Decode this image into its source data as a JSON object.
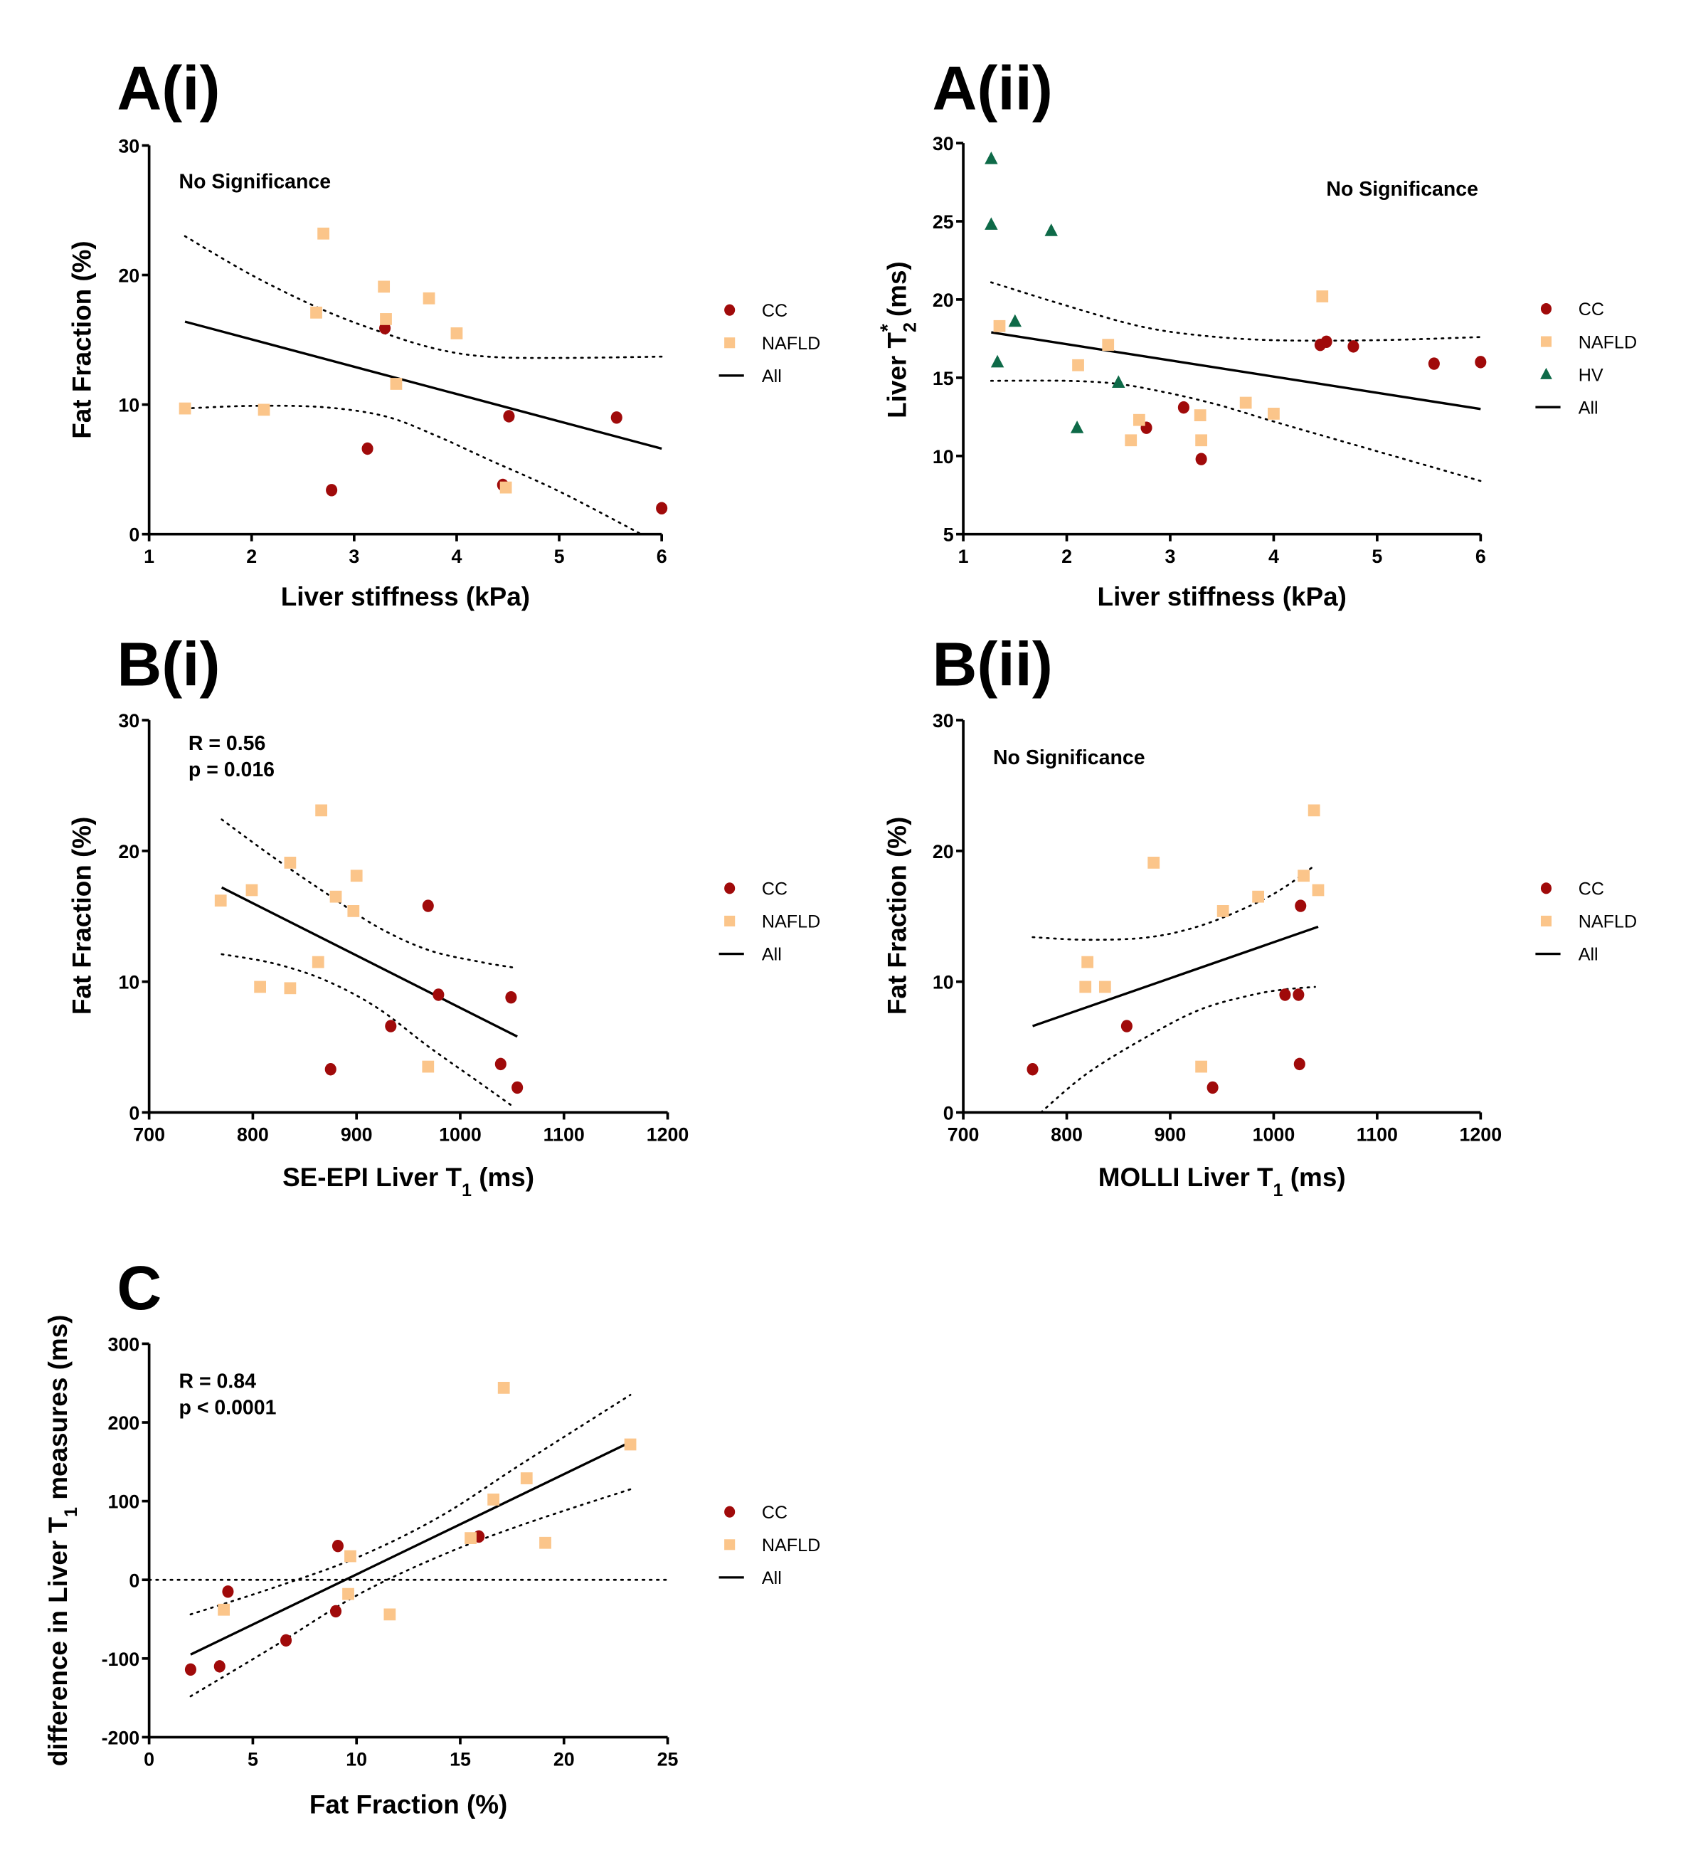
{
  "colors": {
    "CC": "#A00A0A",
    "NAFLD": "#FBC58A",
    "HV": "#0E6A48",
    "line": "#000000"
  },
  "chart_data": [
    {
      "id": "Ai",
      "panel_label": "A(i)",
      "type": "scatter",
      "xlabel": "Liver stiffness (kPa)",
      "ylabel": "Fat Fraction (%)",
      "ylabel_parts": {
        "main": "Fat Fraction (%)",
        "sub": "",
        "sup": "",
        "tail": ""
      },
      "xlim": [
        1,
        6
      ],
      "ylim": [
        0,
        30
      ],
      "xticks": [
        1,
        2,
        3,
        4,
        5,
        6
      ],
      "yticks": [
        0,
        10,
        20,
        30
      ],
      "annotation": [
        "No Significance"
      ],
      "annotation_pos": "top-left",
      "legend": [
        "CC",
        "NAFLD",
        "All"
      ],
      "legend_placement": "right",
      "series": [
        {
          "name": "CC",
          "marker": "circle",
          "points": [
            [
              3.3,
              15.9
            ],
            [
              2.78,
              3.4
            ],
            [
              3.13,
              6.6
            ],
            [
              4.51,
              9.1
            ],
            [
              5.56,
              9.0
            ],
            [
              4.45,
              3.8
            ],
            [
              6.0,
              2.0
            ]
          ]
        },
        {
          "name": "NAFLD",
          "marker": "square",
          "points": [
            [
              1.35,
              9.7
            ],
            [
              2.12,
              9.6
            ],
            [
              2.7,
              23.2
            ],
            [
              2.63,
              17.1
            ],
            [
              3.29,
              19.1
            ],
            [
              3.31,
              16.6
            ],
            [
              3.73,
              18.2
            ],
            [
              4.0,
              15.5
            ],
            [
              3.41,
              11.6
            ],
            [
              4.48,
              3.6
            ]
          ]
        }
      ],
      "fit": {
        "name": "All",
        "from": [
          1.35,
          16.4
        ],
        "to": [
          6.0,
          6.6
        ]
      },
      "ci_upper": [
        [
          1.35,
          23.0
        ],
        [
          2.0,
          20.0
        ],
        [
          2.7,
          17.3
        ],
        [
          3.3,
          15.5
        ],
        [
          3.8,
          14.3
        ],
        [
          4.3,
          13.7
        ],
        [
          5.0,
          13.6
        ],
        [
          6.0,
          13.7
        ]
      ],
      "ci_lower": [
        [
          1.35,
          9.7
        ],
        [
          2.0,
          9.9
        ],
        [
          2.7,
          9.8
        ],
        [
          3.3,
          9.1
        ],
        [
          3.8,
          7.6
        ],
        [
          4.3,
          5.8
        ],
        [
          5.0,
          3.3
        ],
        [
          5.8,
          0.0
        ]
      ]
    },
    {
      "id": "Aii",
      "panel_label": "A(ii)",
      "type": "scatter",
      "xlabel": "Liver stiffness (kPa)",
      "ylabel": "Liver T2* (ms)",
      "ylabel_parts": {
        "main": "Liver T",
        "sub": "2",
        "sup": "*",
        "tail": " (ms)"
      },
      "xlim": [
        1,
        6
      ],
      "ylim": [
        5,
        30
      ],
      "xticks": [
        1,
        2,
        3,
        4,
        5,
        6
      ],
      "yticks": [
        5,
        10,
        15,
        20,
        25,
        30
      ],
      "annotation": [
        "No Significance"
      ],
      "annotation_pos": "top-right",
      "legend": [
        "CC",
        "NAFLD",
        "HV",
        "All"
      ],
      "legend_placement": "right",
      "series": [
        {
          "name": "CC",
          "marker": "circle",
          "points": [
            [
              2.77,
              11.8
            ],
            [
              3.13,
              13.1
            ],
            [
              3.3,
              9.8
            ],
            [
              4.45,
              17.1
            ],
            [
              4.51,
              17.3
            ],
            [
              4.77,
              17.0
            ],
            [
              5.55,
              15.9
            ],
            [
              6.0,
              16.0
            ]
          ]
        },
        {
          "name": "NAFLD",
          "marker": "square",
          "points": [
            [
              1.35,
              18.3
            ],
            [
              2.11,
              15.8
            ],
            [
              2.4,
              17.1
            ],
            [
              2.7,
              12.3
            ],
            [
              2.62,
              11.0
            ],
            [
              3.29,
              12.6
            ],
            [
              3.3,
              11.0
            ],
            [
              3.73,
              13.4
            ],
            [
              4.0,
              12.7
            ],
            [
              4.47,
              20.2
            ]
          ]
        },
        {
          "name": "HV",
          "marker": "triangle",
          "points": [
            [
              1.27,
              29.0
            ],
            [
              1.27,
              24.8
            ],
            [
              1.85,
              24.4
            ],
            [
              1.5,
              18.6
            ],
            [
              1.33,
              16.0
            ],
            [
              2.5,
              14.7
            ],
            [
              2.1,
              11.8
            ]
          ]
        }
      ],
      "fit": {
        "name": "All",
        "from": [
          1.27,
          17.9
        ],
        "to": [
          6.0,
          13.0
        ]
      },
      "ci_upper": [
        [
          1.27,
          21.1
        ],
        [
          2.0,
          19.6
        ],
        [
          2.7,
          18.3
        ],
        [
          3.3,
          17.7
        ],
        [
          4.0,
          17.4
        ],
        [
          5.0,
          17.4
        ],
        [
          6.0,
          17.6
        ]
      ],
      "ci_lower": [
        [
          1.27,
          14.8
        ],
        [
          2.0,
          14.8
        ],
        [
          2.5,
          14.6
        ],
        [
          3.0,
          14.0
        ],
        [
          3.5,
          13.2
        ],
        [
          4.0,
          12.2
        ],
        [
          5.0,
          10.3
        ],
        [
          6.0,
          8.4
        ]
      ]
    },
    {
      "id": "Bi",
      "panel_label": "B(i)",
      "type": "scatter",
      "xlabel": "SE-EPI Liver T1 (ms)",
      "xlabel_parts": {
        "main": "SE-EPI Liver T",
        "sub": "1",
        "tail": " (ms)"
      },
      "ylabel": "Fat Fraction (%)",
      "ylabel_parts": {
        "main": "Fat Fraction (%)",
        "sub": "",
        "sup": "",
        "tail": ""
      },
      "xlim": [
        700,
        1200
      ],
      "ylim": [
        0,
        30
      ],
      "xticks": [
        700,
        800,
        900,
        1000,
        1100,
        1200
      ],
      "yticks": [
        0,
        10,
        20,
        30
      ],
      "annotation": [
        "R = 0.56",
        "p = 0.016"
      ],
      "annotation_pos": "top-left",
      "legend": [
        "CC",
        "NAFLD",
        "All"
      ],
      "legend_placement": "right",
      "series": [
        {
          "name": "CC",
          "marker": "circle",
          "points": [
            [
              875,
              3.3
            ],
            [
              933,
              6.6
            ],
            [
              969,
              15.8
            ],
            [
              979,
              9.0
            ],
            [
              1039,
              3.7
            ],
            [
              1049,
              8.8
            ],
            [
              1055,
              1.9
            ]
          ]
        },
        {
          "name": "NAFLD",
          "marker": "square",
          "points": [
            [
              769,
              16.2
            ],
            [
              799,
              17.0
            ],
            [
              807,
              9.6
            ],
            [
              836,
              19.1
            ],
            [
              836,
              9.5
            ],
            [
              866,
              23.1
            ],
            [
              863,
              11.5
            ],
            [
              880,
              16.5
            ],
            [
              897,
              15.4
            ],
            [
              900,
              18.1
            ],
            [
              969,
              3.5
            ]
          ]
        }
      ],
      "fit": {
        "name": "All",
        "from": [
          770,
          17.2
        ],
        "to": [
          1055,
          5.8
        ]
      },
      "ci_upper": [
        [
          770,
          22.4
        ],
        [
          820,
          19.5
        ],
        [
          870,
          16.8
        ],
        [
          920,
          14.2
        ],
        [
          970,
          12.4
        ],
        [
          1020,
          11.5
        ],
        [
          1050,
          11.1
        ]
      ],
      "ci_lower": [
        [
          770,
          12.1
        ],
        [
          820,
          11.4
        ],
        [
          870,
          10.1
        ],
        [
          920,
          8.0
        ],
        [
          970,
          5.0
        ],
        [
          1020,
          2.2
        ],
        [
          1050,
          0.5
        ]
      ]
    },
    {
      "id": "Bii",
      "panel_label": "B(ii)",
      "type": "scatter",
      "xlabel": "MOLLI Liver T1 (ms)",
      "xlabel_parts": {
        "main": "MOLLI Liver T",
        "sub": "1",
        "tail": " (ms)"
      },
      "ylabel": "Fat Fraction (%)",
      "ylabel_parts": {
        "main": "Fat Fraction (%)",
        "sub": "",
        "sup": "",
        "tail": ""
      },
      "xlim": [
        700,
        1200
      ],
      "ylim": [
        0,
        30
      ],
      "xticks": [
        700,
        800,
        900,
        1000,
        1100,
        1200
      ],
      "yticks": [
        0,
        10,
        20,
        30
      ],
      "annotation": [
        "No Significance"
      ],
      "annotation_pos": "top-left",
      "legend": [
        "CC",
        "NAFLD",
        "All"
      ],
      "legend_placement": "right",
      "series": [
        {
          "name": "CC",
          "marker": "circle",
          "points": [
            [
              767,
              3.3
            ],
            [
              858,
              6.6
            ],
            [
              1026,
              15.8
            ],
            [
              1011,
              9.0
            ],
            [
              1024,
              9.0
            ],
            [
              1025,
              3.7
            ],
            [
              941,
              1.9
            ]
          ]
        },
        {
          "name": "NAFLD",
          "marker": "square",
          "points": [
            [
              1039,
              23.1
            ],
            [
              884,
              19.1
            ],
            [
              1029,
              18.1
            ],
            [
              1043,
              17.0
            ],
            [
              985,
              16.5
            ],
            [
              951,
              15.4
            ],
            [
              820,
              11.5
            ],
            [
              818,
              9.6
            ],
            [
              837,
              9.6
            ],
            [
              930,
              3.5
            ]
          ]
        }
      ],
      "fit": {
        "name": "All",
        "from": [
          767,
          6.6
        ],
        "to": [
          1043,
          14.2
        ]
      },
      "ci_upper": [
        [
          767,
          13.4
        ],
        [
          820,
          13.2
        ],
        [
          880,
          13.4
        ],
        [
          930,
          14.3
        ],
        [
          980,
          15.9
        ],
        [
          1010,
          17.2
        ],
        [
          1040,
          18.9
        ]
      ],
      "ci_lower": [
        [
          775,
          0.0
        ],
        [
          820,
          3.0
        ],
        [
          880,
          5.9
        ],
        [
          930,
          7.9
        ],
        [
          980,
          9.0
        ],
        [
          1010,
          9.4
        ],
        [
          1040,
          9.6
        ]
      ]
    },
    {
      "id": "C",
      "panel_label": "C",
      "type": "scatter",
      "xlabel": "Fat Fraction (%)",
      "ylabel": "difference in Liver T1 measures (ms)",
      "ylabel_parts": {
        "main": "difference in Liver T",
        "sub": "1",
        "sup": "",
        "tail": " measures (ms)"
      },
      "xlim": [
        0,
        25
      ],
      "ylim": [
        -200,
        300
      ],
      "xticks": [
        0,
        5,
        10,
        15,
        20,
        25
      ],
      "yticks": [
        -200,
        -100,
        0,
        100,
        200,
        300
      ],
      "annotation": [
        "R = 0.84",
        "p < 0.0001"
      ],
      "annotation_pos": "top-left",
      "legend": [
        "CC",
        "NAFLD",
        "All"
      ],
      "legend_placement": "right",
      "reference_line_y": 0,
      "series": [
        {
          "name": "CC",
          "marker": "circle",
          "points": [
            [
              2.0,
              -114
            ],
            [
              3.4,
              -110
            ],
            [
              3.8,
              -15
            ],
            [
              6.6,
              -77
            ],
            [
              9.0,
              -40
            ],
            [
              9.1,
              43
            ],
            [
              15.9,
              55
            ]
          ]
        },
        {
          "name": "NAFLD",
          "marker": "square",
          "points": [
            [
              3.6,
              -38
            ],
            [
              9.6,
              -18
            ],
            [
              9.7,
              30
            ],
            [
              11.6,
              -44
            ],
            [
              15.5,
              53
            ],
            [
              16.6,
              102
            ],
            [
              17.1,
              244
            ],
            [
              18.2,
              129
            ],
            [
              19.1,
              47
            ],
            [
              23.2,
              172
            ]
          ]
        }
      ],
      "fit": {
        "name": "All",
        "from": [
          2.0,
          -95
        ],
        "to": [
          23.2,
          175
        ]
      },
      "ci_upper": [
        [
          2.0,
          -44
        ],
        [
          6,
          -10
        ],
        [
          10,
          28
        ],
        [
          14,
          80
        ],
        [
          18,
          148
        ],
        [
          23.2,
          235
        ]
      ],
      "ci_lower": [
        [
          2.0,
          -148
        ],
        [
          6,
          -85
        ],
        [
          10,
          -20
        ],
        [
          14,
          30
        ],
        [
          18,
          70
        ],
        [
          23.2,
          115
        ]
      ]
    }
  ]
}
